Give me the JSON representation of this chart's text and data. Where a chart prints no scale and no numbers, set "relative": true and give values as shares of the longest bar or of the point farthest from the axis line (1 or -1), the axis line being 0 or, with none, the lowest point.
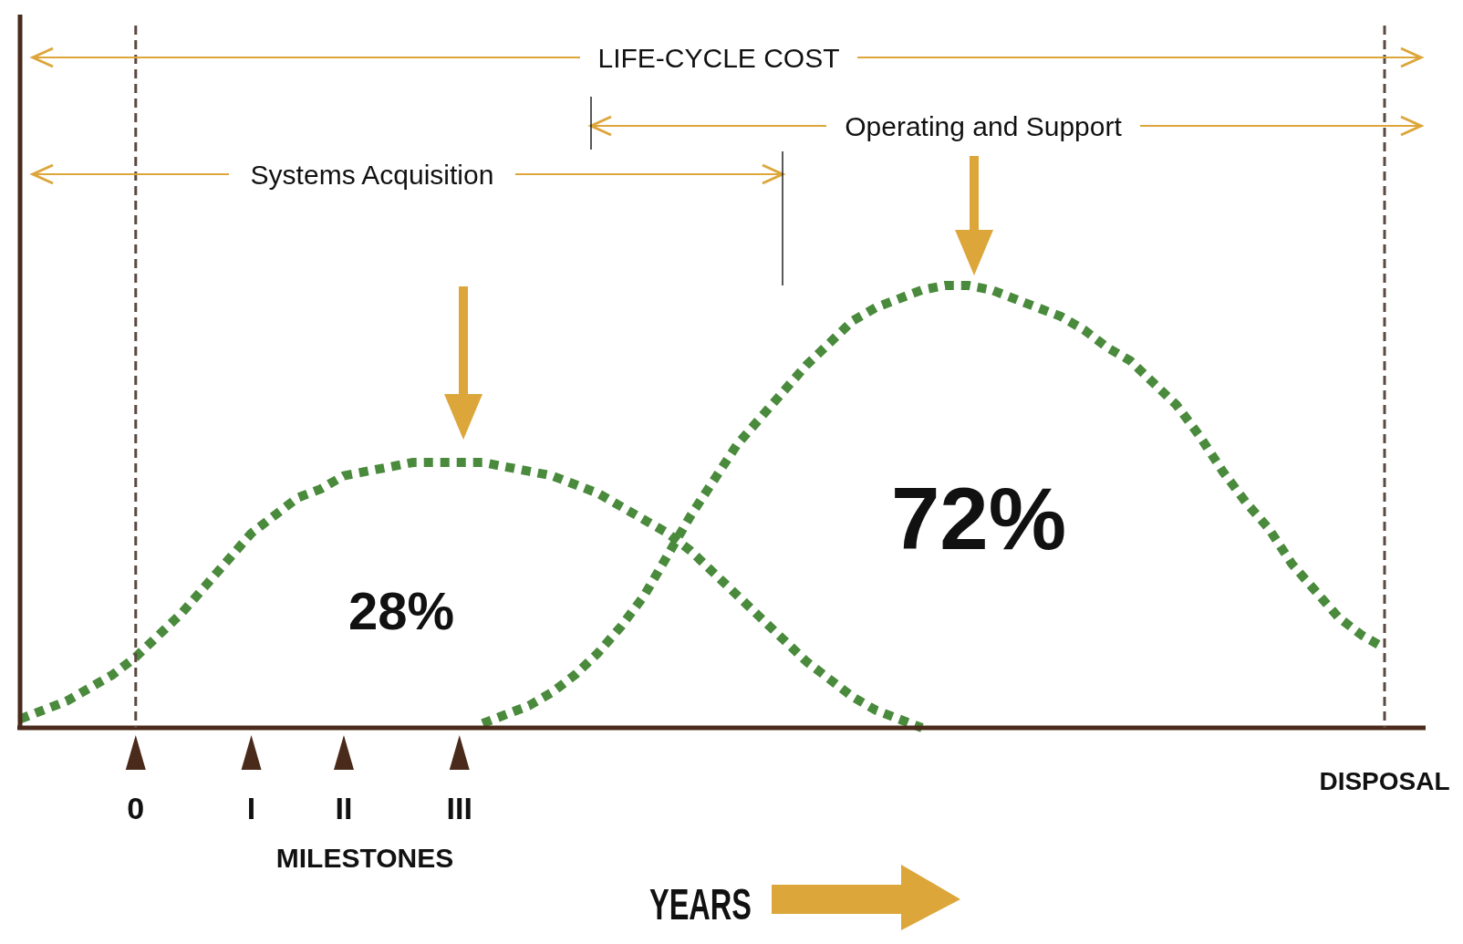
{
  "chart_data": {
    "type": "line",
    "relative": true,
    "xlabel": "YEARS",
    "line_style": "dotted",
    "categories": [
      null,
      null,
      null,
      null,
      null,
      "0",
      null,
      null,
      null,
      null,
      "I",
      null,
      null,
      null,
      "II",
      null,
      null,
      null,
      null,
      "III",
      null,
      null,
      null,
      null,
      null,
      null,
      null,
      null,
      null,
      null,
      null,
      null,
      null,
      null,
      null,
      null,
      null,
      null,
      null,
      null,
      null,
      null,
      null,
      null,
      null,
      null,
      null,
      null,
      null,
      null,
      null,
      null,
      null,
      null,
      null,
      null,
      null,
      null,
      null,
      "DISPOSAL"
    ],
    "series": [
      {
        "color": "#4a8a3c",
        "values": [
          0.02,
          0.04,
          0.06,
          0.09,
          0.12,
          0.16,
          0.21,
          0.26,
          0.32,
          0.38,
          0.44,
          0.48,
          0.52,
          0.54,
          0.57,
          0.58,
          0.59,
          0.6,
          0.6,
          0.6,
          0.6,
          0.59,
          0.58,
          0.57,
          0.55,
          0.53,
          0.5,
          0.47,
          0.44,
          0.4,
          0.35,
          0.3,
          0.25,
          0.2,
          0.15,
          0.11,
          0.07,
          0.04,
          0.02,
          0,
          null,
          null,
          null,
          null,
          null,
          null,
          null,
          null,
          null,
          null,
          null,
          null,
          null,
          null,
          null,
          null,
          null,
          null,
          null,
          null
        ]
      },
      {
        "color": "#4a8a3c",
        "values": [
          null,
          null,
          null,
          null,
          null,
          null,
          null,
          null,
          null,
          null,
          null,
          null,
          null,
          null,
          null,
          null,
          null,
          null,
          null,
          null,
          0.01,
          0.03,
          0.05,
          0.08,
          0.12,
          0.17,
          0.23,
          0.3,
          0.39,
          0.48,
          0.56,
          0.64,
          0.7,
          0.76,
          0.82,
          0.87,
          0.92,
          0.95,
          0.97,
          0.99,
          1.0,
          1.0,
          0.99,
          0.97,
          0.95,
          0.93,
          0.9,
          0.86,
          0.83,
          0.78,
          0.73,
          0.66,
          0.58,
          0.51,
          0.45,
          0.37,
          0.31,
          0.25,
          0.21,
          0.18
        ]
      }
    ],
    "ref_lines": [
      {
        "axis": "x",
        "value": "0",
        "color": "#5a4a40",
        "line_style": "dashed"
      },
      {
        "axis": "x",
        "value": "DISPOSAL",
        "color": "#5a4a40",
        "line_style": "dashed"
      }
    ],
    "annotations": [
      "LIFE-CYCLE COST",
      "Operating and Support",
      "Systems Acquisition",
      "MILESTONES",
      "28%",
      "72%"
    ]
  }
}
